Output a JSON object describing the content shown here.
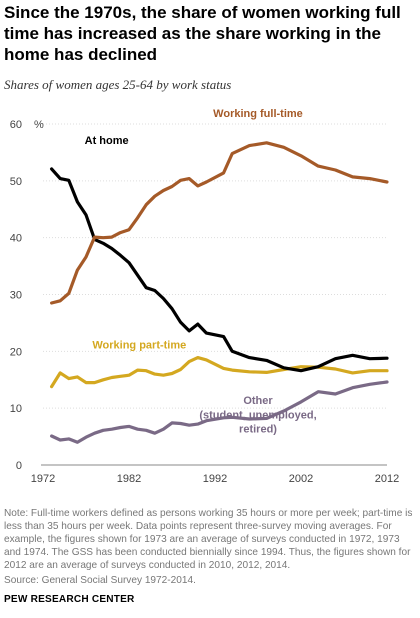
{
  "chart_data": {
    "type": "line",
    "title": "Since the 1970s, the share of women working full time has increased as the share working in the home has declined",
    "subtitle": "Shares of women ages 25-64 by work status",
    "ylabel": "%",
    "xlim": [
      1972,
      2012
    ],
    "ylim": [
      0,
      60
    ],
    "yticks": [
      0,
      10,
      20,
      30,
      40,
      50,
      60
    ],
    "xticks": [
      1972,
      1982,
      1992,
      2002,
      2012
    ],
    "x": [
      1973,
      1974,
      1975,
      1976,
      1977,
      1978,
      1979,
      1980,
      1981,
      1982,
      1983,
      1984,
      1985,
      1986,
      1987,
      1988,
      1989,
      1990,
      1991,
      1993,
      1994,
      1996,
      1998,
      2000,
      2002,
      2004,
      2006,
      2008,
      2010,
      2012
    ],
    "series": [
      {
        "name": "Working full-time",
        "color": "#a55a28",
        "values": [
          28.5,
          28.9,
          30.2,
          34.3,
          36.6,
          40.1,
          40.0,
          40.1,
          40.9,
          41.4,
          43.5,
          45.8,
          47.3,
          48.3,
          49.0,
          50.1,
          50.4,
          49.1,
          49.8,
          51.4,
          54.8,
          56.2,
          56.7,
          55.9,
          54.4,
          52.6,
          51.9,
          50.7,
          50.4,
          49.8
        ]
      },
      {
        "name": "At home",
        "color": "#000000",
        "values": [
          52.1,
          50.4,
          50.1,
          46.3,
          44.0,
          39.7,
          39.0,
          38.1,
          36.9,
          35.6,
          33.4,
          31.2,
          30.7,
          29.3,
          27.5,
          25.1,
          23.6,
          24.8,
          23.2,
          22.6,
          20.0,
          18.9,
          18.4,
          17.1,
          16.6,
          17.3,
          18.7,
          19.3,
          18.7,
          18.8
        ]
      },
      {
        "name": "Working part-time",
        "color": "#d4a820",
        "values": [
          13.8,
          16.2,
          15.2,
          15.5,
          14.5,
          14.5,
          15.0,
          15.4,
          15.6,
          15.8,
          16.7,
          16.6,
          16.0,
          15.8,
          16.1,
          16.8,
          18.2,
          18.9,
          18.5,
          17.0,
          16.7,
          16.4,
          16.3,
          16.8,
          17.3,
          17.2,
          16.9,
          16.2,
          16.6,
          16.6
        ]
      },
      {
        "name": "Other (student, unemployed, retired)",
        "color": "#7a6a86",
        "values": [
          5.1,
          4.4,
          4.6,
          4.0,
          4.9,
          5.6,
          6.1,
          6.3,
          6.6,
          6.8,
          6.3,
          6.1,
          5.6,
          6.3,
          7.4,
          7.3,
          7.0,
          7.2,
          7.8,
          8.3,
          8.4,
          8.1,
          8.2,
          9.5,
          11.1,
          12.9,
          12.5,
          13.6,
          14.2,
          14.6
        ]
      }
    ],
    "labels": {
      "full_time": "Working full-time",
      "at_home": "At home",
      "part_time": "Working part-time",
      "other_1": "Other",
      "other_2": "(student, unemployed,",
      "other_3": "retired)"
    },
    "grid": true,
    "gridline_color": "#dddddd"
  },
  "footer": {
    "note": "Note: Full-time workers defined as persons working 35 hours or more per week; part-time is less than 35 hours per week.  Data points represent three-survey moving averages. For example, the figures shown for 1973 are an average of surveys conducted in 1972, 1973 and 1974. The GSS has been conducted biennially since 1994. Thus, the figures shown for 2012 are an average of surveys conducted in 2010, 2012, 2014.",
    "source": "Source: General Social Survey 1972-2014.",
    "org": "PEW RESEARCH CENTER"
  }
}
